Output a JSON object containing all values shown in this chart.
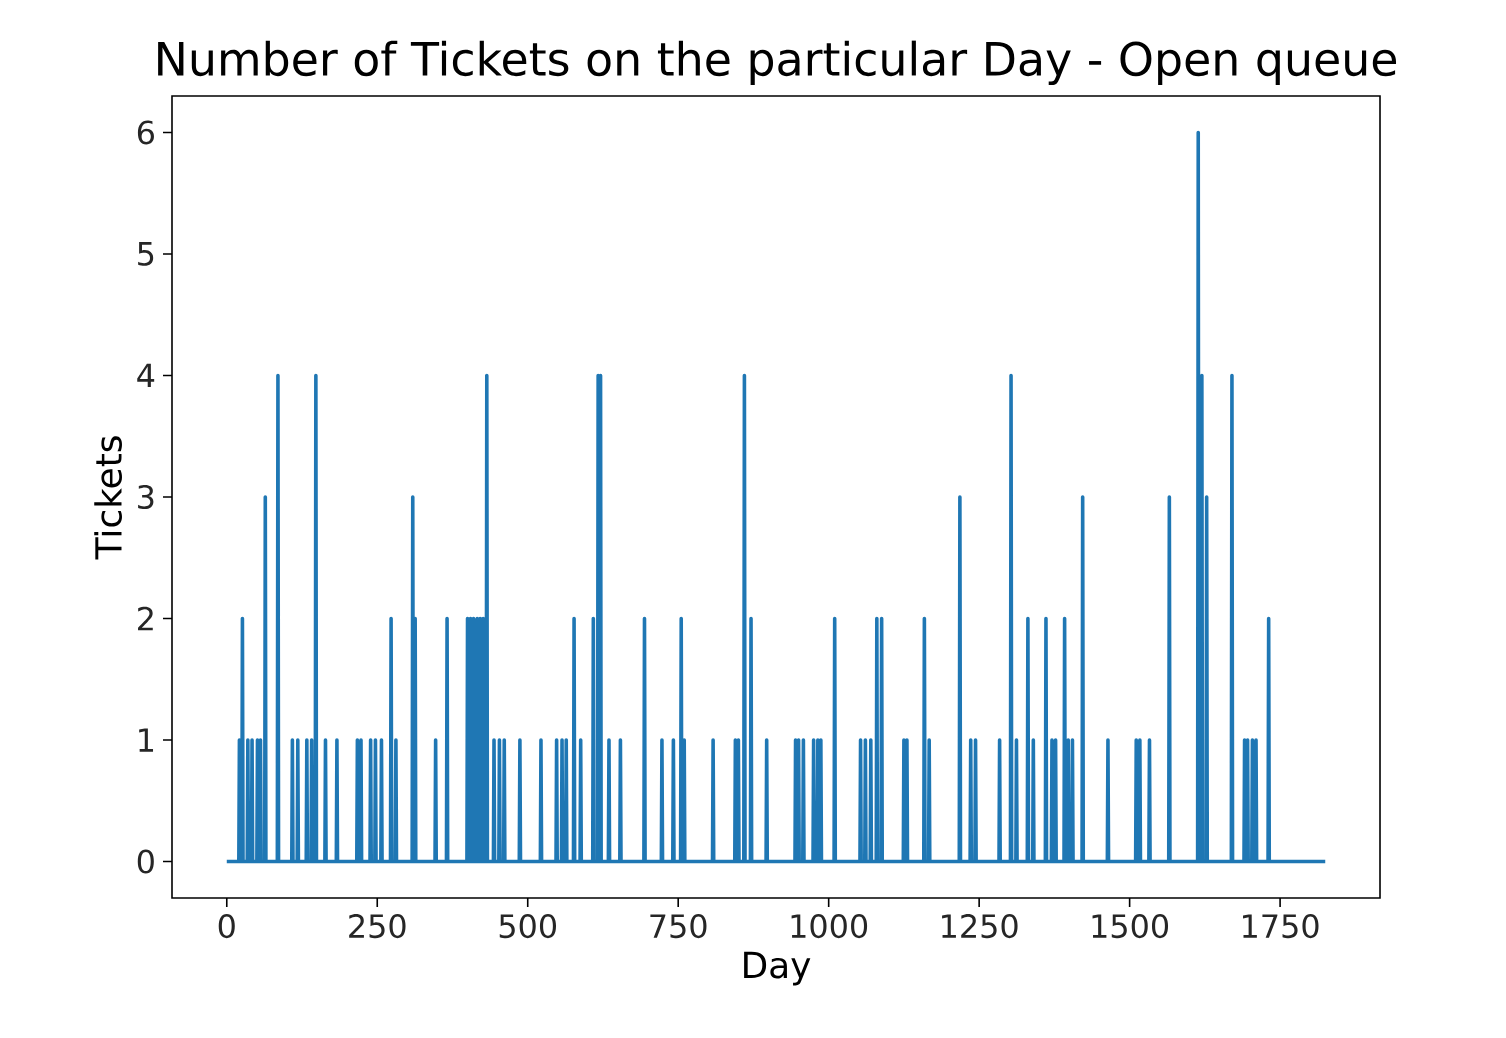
{
  "chart_data": {
    "type": "line",
    "title": "Number of Tickets on the particular Day - Open queue",
    "xlabel": "Day",
    "ylabel": "Tickets",
    "xlim": [
      -91,
      1916
    ],
    "ylim": [
      -0.3,
      6.3
    ],
    "xticks": [
      0,
      250,
      500,
      750,
      1000,
      1250,
      1500,
      1750
    ],
    "yticks": [
      0,
      1,
      2,
      3,
      4,
      5,
      6
    ],
    "grid": false,
    "marker": "none",
    "line_style": "solid",
    "series": [
      {
        "color": "#1f77b4",
        "x": [
          0,
          20,
          21,
          22,
          25,
          26,
          27,
          34,
          35,
          36,
          41,
          42,
          43,
          50,
          51,
          52,
          55,
          56,
          57,
          63,
          64,
          65,
          84,
          85,
          86,
          108,
          109,
          110,
          117,
          118,
          119,
          132,
          133,
          134,
          140,
          141,
          142,
          147,
          148,
          149,
          163,
          164,
          165,
          182,
          183,
          184,
          216,
          217,
          218,
          222,
          223,
          224,
          238,
          239,
          240,
          246,
          247,
          248,
          256,
          257,
          258,
          272,
          273,
          274,
          280,
          281,
          282,
          308,
          309,
          310,
          312,
          313,
          314,
          346,
          347,
          348,
          365,
          366,
          367,
          399,
          400,
          401,
          404,
          405,
          406,
          409,
          410,
          411,
          415,
          416,
          417,
          420,
          421,
          422,
          425,
          426,
          427,
          431,
          432,
          433,
          443,
          444,
          445,
          452,
          453,
          454,
          460,
          461,
          462,
          486,
          487,
          488,
          521,
          522,
          523,
          547,
          548,
          549,
          556,
          557,
          558,
          563,
          564,
          565,
          576,
          577,
          578,
          587,
          588,
          589,
          608,
          609,
          610,
          616,
          617,
          618,
          620,
          621,
          622,
          634,
          635,
          636,
          653,
          654,
          655,
          693,
          694,
          695,
          722,
          723,
          724,
          741,
          742,
          743,
          754,
          755,
          756,
          759,
          760,
          761,
          807,
          808,
          809,
          844,
          845,
          846,
          849,
          850,
          851,
          859,
          860,
          861,
          870,
          871,
          872,
          896,
          897,
          898,
          944,
          945,
          946,
          949,
          950,
          951,
          957,
          958,
          959,
          974,
          975,
          976,
          981,
          982,
          983,
          986,
          987,
          988,
          1009,
          1010,
          1011,
          1052,
          1053,
          1054,
          1060,
          1061,
          1062,
          1069,
          1070,
          1071,
          1079,
          1080,
          1081,
          1087,
          1088,
          1089,
          1124,
          1125,
          1126,
          1129,
          1130,
          1131,
          1158,
          1159,
          1160,
          1166,
          1167,
          1168,
          1217,
          1218,
          1219,
          1235,
          1236,
          1237,
          1243,
          1244,
          1245,
          1283,
          1284,
          1285,
          1302,
          1303,
          1304,
          1311,
          1312,
          1313,
          1330,
          1331,
          1332,
          1339,
          1340,
          1341,
          1360,
          1361,
          1362,
          1370,
          1371,
          1372,
          1376,
          1377,
          1378,
          1391,
          1392,
          1393,
          1397,
          1398,
          1399,
          1404,
          1405,
          1406,
          1421,
          1422,
          1423,
          1463,
          1464,
          1465,
          1510,
          1511,
          1512,
          1516,
          1517,
          1518,
          1532,
          1533,
          1534,
          1565,
          1566,
          1567,
          1613,
          1614,
          1615,
          1619,
          1620,
          1621,
          1627,
          1628,
          1629,
          1669,
          1670,
          1671,
          1690,
          1691,
          1692,
          1695,
          1696,
          1697,
          1703,
          1704,
          1705,
          1709,
          1710,
          1711,
          1730,
          1731,
          1732,
          1825
        ],
        "values": [
          0,
          0,
          1,
          0,
          0,
          2,
          0,
          0,
          1,
          0,
          0,
          1,
          0,
          0,
          1,
          0,
          0,
          1,
          0,
          0,
          3,
          0,
          0,
          4,
          0,
          0,
          1,
          0,
          0,
          1,
          0,
          0,
          1,
          0,
          0,
          1,
          0,
          0,
          4,
          0,
          0,
          1,
          0,
          0,
          1,
          0,
          0,
          1,
          0,
          0,
          1,
          0,
          0,
          1,
          0,
          0,
          1,
          0,
          0,
          1,
          0,
          0,
          2,
          0,
          0,
          1,
          0,
          0,
          3,
          0,
          0,
          2,
          0,
          0,
          1,
          0,
          0,
          2,
          0,
          0,
          2,
          0,
          0,
          2,
          0,
          0,
          2,
          0,
          0,
          2,
          0,
          0,
          2,
          0,
          0,
          2,
          0,
          0,
          4,
          0,
          0,
          1,
          0,
          0,
          1,
          0,
          0,
          1,
          0,
          0,
          1,
          0,
          0,
          1,
          0,
          0,
          1,
          0,
          0,
          1,
          0,
          0,
          1,
          0,
          0,
          2,
          0,
          0,
          1,
          0,
          0,
          2,
          0,
          0,
          4,
          0,
          0,
          4,
          0,
          0,
          1,
          0,
          0,
          1,
          0,
          0,
          2,
          0,
          0,
          1,
          0,
          0,
          1,
          0,
          0,
          2,
          0,
          0,
          1,
          0,
          0,
          1,
          0,
          0,
          1,
          0,
          0,
          1,
          0,
          0,
          4,
          0,
          0,
          2,
          0,
          0,
          1,
          0,
          0,
          1,
          0,
          0,
          1,
          0,
          0,
          1,
          0,
          0,
          1,
          0,
          0,
          1,
          0,
          0,
          1,
          0,
          0,
          2,
          0,
          0,
          1,
          0,
          0,
          1,
          0,
          0,
          1,
          0,
          0,
          2,
          0,
          0,
          2,
          0,
          0,
          1,
          0,
          0,
          1,
          0,
          0,
          2,
          0,
          0,
          1,
          0,
          0,
          3,
          0,
          0,
          1,
          0,
          0,
          1,
          0,
          0,
          1,
          0,
          0,
          4,
          0,
          0,
          1,
          0,
          0,
          2,
          0,
          0,
          1,
          0,
          0,
          2,
          0,
          0,
          1,
          0,
          0,
          1,
          0,
          0,
          2,
          0,
          0,
          1,
          0,
          0,
          1,
          0,
          0,
          3,
          0,
          0,
          1,
          0,
          0,
          1,
          0,
          0,
          1,
          0,
          0,
          1,
          0,
          0,
          3,
          0,
          0,
          6,
          0,
          0,
          4,
          0,
          0,
          3,
          0,
          0,
          4,
          0,
          0,
          1,
          0,
          0,
          1,
          0,
          0,
          1,
          0,
          0,
          1,
          0,
          0,
          2,
          0,
          0
        ]
      }
    ]
  }
}
